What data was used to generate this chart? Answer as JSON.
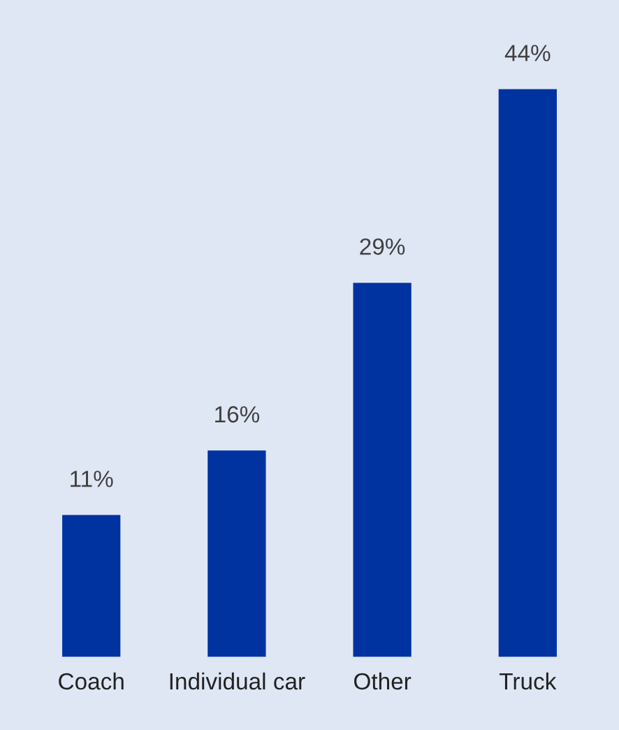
{
  "chart_data": {
    "type": "bar",
    "categories": [
      "Coach",
      "Individual car",
      "Other",
      "Truck"
    ],
    "values": [
      11,
      16,
      29,
      44
    ],
    "value_labels": [
      "11%",
      "16%",
      "29%",
      "44%"
    ],
    "color": "#0033a0",
    "tick_labels": "x",
    "grid": false,
    "legend": false
  }
}
